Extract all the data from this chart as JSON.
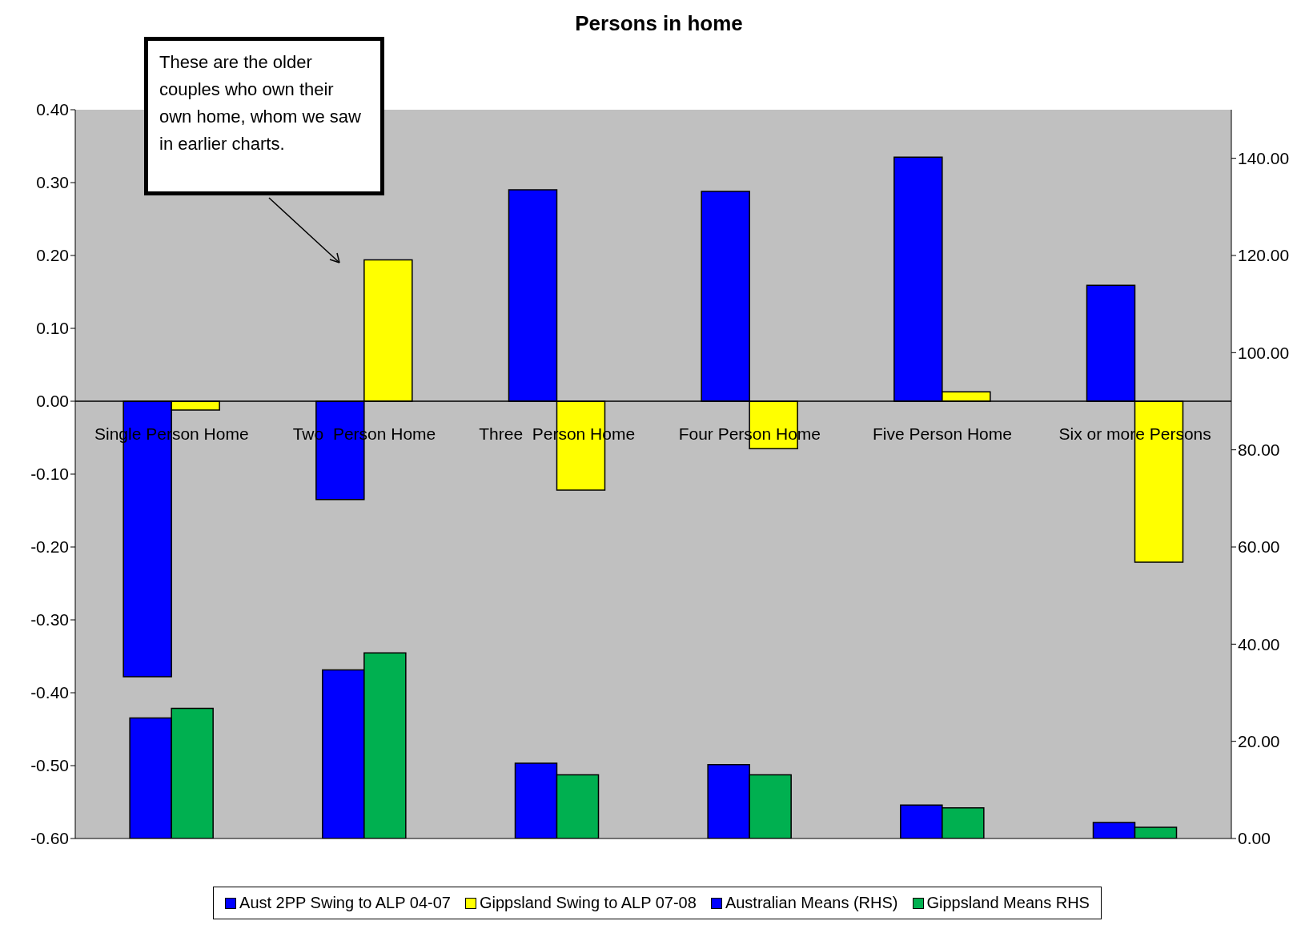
{
  "chart_data": {
    "type": "bar",
    "title": "Persons in home",
    "categories": [
      "Single Person Home",
      "Two  Person Home",
      "Three  Person Home",
      "Four Person Home",
      "Five Person Home",
      "Six or more Persons"
    ],
    "series": [
      {
        "name": "Aust 2PP Swing to ALP 04-07",
        "color": "#0000ff",
        "values": [
          -0.378,
          -0.135,
          0.29,
          0.288,
          0.335,
          0.159
        ]
      },
      {
        "name": "Gippsland Swing to ALP 07-08",
        "color": "#ffff00",
        "values": [
          -0.012,
          0.194,
          -0.122,
          -0.065,
          0.013,
          -0.221
        ]
      },
      {
        "name": "Australian Means (RHS)",
        "color": "#0000ff",
        "axis": "y2",
        "values": [
          24.8,
          34.7,
          15.5,
          15.2,
          6.9,
          3.3
        ]
      },
      {
        "name": "Gippsland Means RHS",
        "color": "#00b050",
        "axis": "y2",
        "values": [
          26.8,
          38.2,
          13.1,
          13.1,
          6.3,
          2.3
        ]
      }
    ],
    "ylim": [
      -0.6,
      0.4
    ],
    "yticks": [
      {
        "value": 0.4,
        "label": "0.40"
      },
      {
        "value": 0.3,
        "label": "0.30"
      },
      {
        "value": 0.2,
        "label": "0.20"
      },
      {
        "value": 0.1,
        "label": "0.10"
      },
      {
        "value": 0,
        "label": "0.00"
      },
      {
        "value": -0.1,
        "label": "-0.10"
      },
      {
        "value": -0.2,
        "label": "-0.20"
      },
      {
        "value": -0.3,
        "label": "-0.30"
      },
      {
        "value": -0.4,
        "label": "-0.40"
      },
      {
        "value": -0.5,
        "label": "-0.50"
      },
      {
        "value": -0.6,
        "label": "-0.60"
      }
    ],
    "y2lim": [
      0,
      150
    ],
    "y2ticks": [
      {
        "value": 0,
        "label": "0.00"
      },
      {
        "value": 20,
        "label": "20.00"
      },
      {
        "value": 40,
        "label": "40.00"
      },
      {
        "value": 60,
        "label": "60.00"
      },
      {
        "value": 80,
        "label": "80.00"
      },
      {
        "value": 100,
        "label": "100.00"
      },
      {
        "value": 120,
        "label": "120.00"
      },
      {
        "value": 140,
        "label": "140.00"
      }
    ],
    "annotations": [
      "These are the older couples who own their own home, whom we saw in earlier charts."
    ],
    "legend": "bottom"
  }
}
